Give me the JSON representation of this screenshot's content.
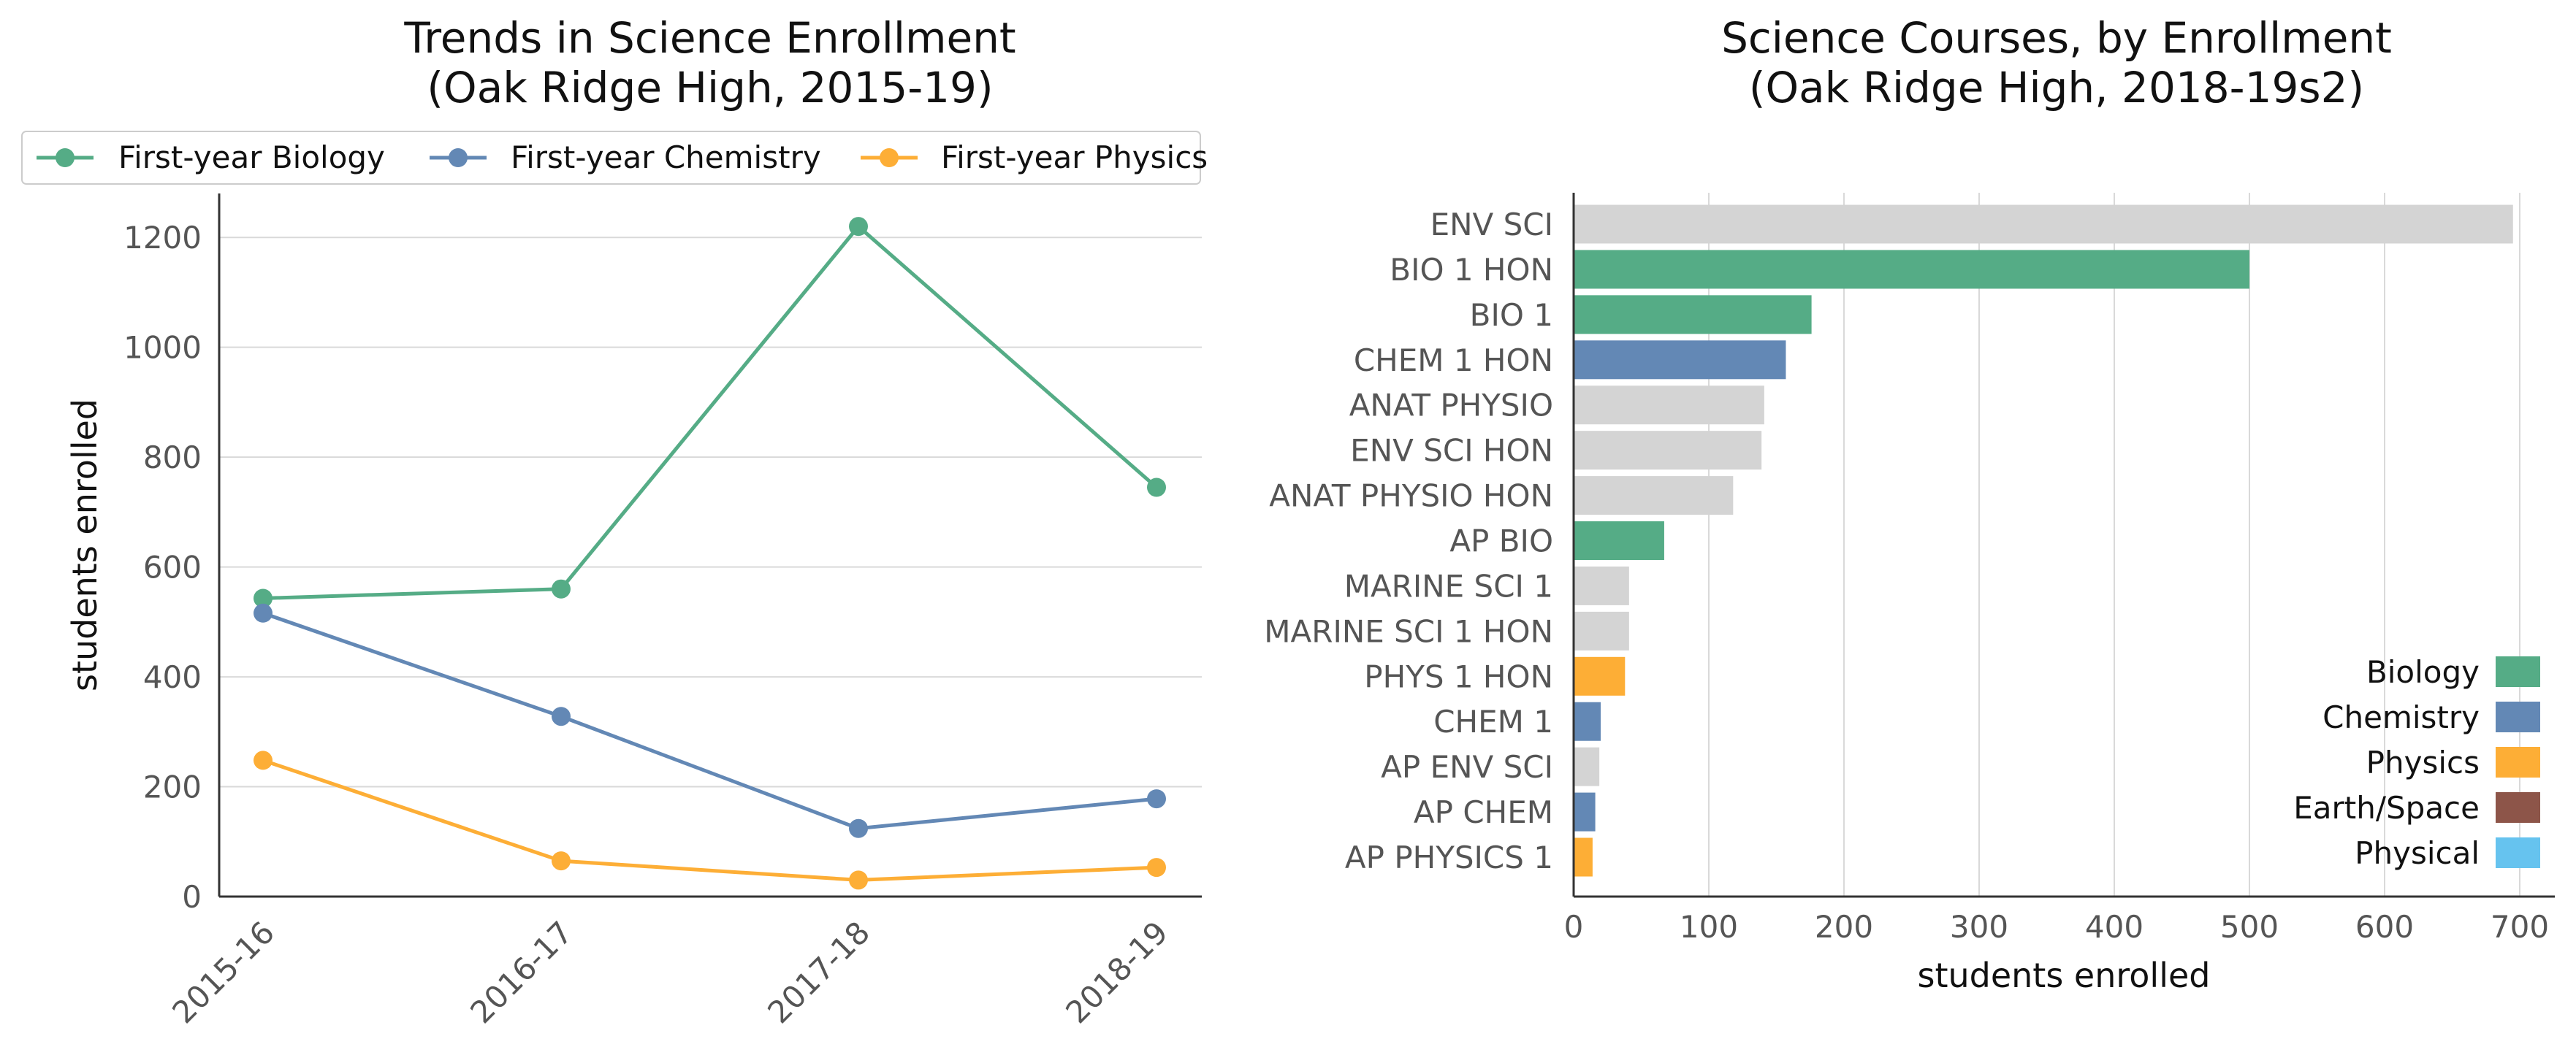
{
  "colors": {
    "Biology": "#55ac86",
    "Chemistry": "#6388b5",
    "Physics": "#fdae36",
    "Earth/Space": "#8d5549",
    "Physical": "#66c3ef",
    "Other": "#d4d4d4"
  },
  "chart_data": [
    {
      "type": "line",
      "title": "Trends in Science Enrollment\n (Oak Ridge High, 2015-19)",
      "xlabel": "",
      "ylabel": "students enrolled",
      "x": [
        "2015-16",
        "2016-17",
        "2017-18",
        "2018-19"
      ],
      "series": [
        {
          "name": "First-year Biology",
          "color": "#55ac86",
          "values": [
            543,
            560,
            1220,
            745
          ]
        },
        {
          "name": "First-year Chemistry",
          "color": "#6388b5",
          "values": [
            516,
            328,
            124,
            178
          ]
        },
        {
          "name": "First-year Physics",
          "color": "#fdae36",
          "values": [
            248,
            65,
            30,
            53
          ]
        }
      ],
      "ylim": [
        0,
        1280
      ],
      "yticks": [
        0,
        200,
        400,
        600,
        800,
        1000,
        1200
      ],
      "grid": "horizontal",
      "legend_position": "top"
    },
    {
      "type": "bar",
      "orientation": "horizontal",
      "title": "Science Courses, by Enrollment\n (Oak Ridge High, 2018-19s2)",
      "xlabel": "students enrolled",
      "ylabel": "",
      "categories": [
        "ENV SCI",
        "BIO 1 HON",
        "BIO 1",
        "CHEM 1 HON",
        "ANAT PHYSIO",
        "ENV SCI HON",
        "ANAT PHYSIO HON",
        "AP BIO",
        "MARINE SCI 1",
        "MARINE SCI 1 HON",
        "PHYS 1 HON",
        "CHEM 1",
        "AP ENV SCI",
        "AP CHEM",
        "AP PHYSICS 1"
      ],
      "values": [
        695,
        500,
        176,
        157,
        141,
        139,
        118,
        67,
        41,
        41,
        38,
        20,
        19,
        16,
        14
      ],
      "subjects": [
        "Other",
        "Biology",
        "Biology",
        "Chemistry",
        "Other",
        "Other",
        "Other",
        "Biology",
        "Other",
        "Other",
        "Physics",
        "Chemistry",
        "Other",
        "Chemistry",
        "Physics"
      ],
      "xlim": [
        0,
        730
      ],
      "xticks": [
        0,
        100,
        200,
        300,
        400,
        500,
        600,
        700
      ],
      "grid": "vertical",
      "legend": [
        "Biology",
        "Chemistry",
        "Physics",
        "Earth/Space",
        "Physical"
      ],
      "legend_position": "lower-right"
    }
  ]
}
